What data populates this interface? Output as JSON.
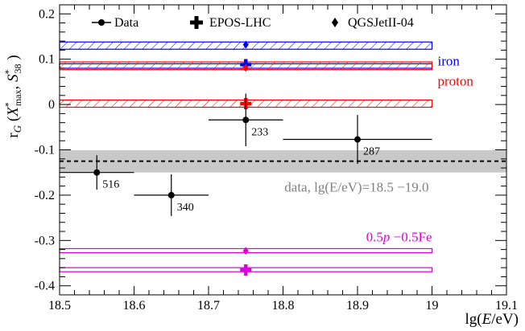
{
  "chart_data": {
    "type": "scatter",
    "xlabel": "lg(E/eV)",
    "ylabel": "r_G (X*max , S*38 )",
    "xlim": [
      18.5,
      19.1
    ],
    "ylim": [
      -0.42,
      0.22
    ],
    "x_ticks": [
      "18.5",
      "18.6",
      "18.7",
      "18.8",
      "18.9",
      "19",
      "19.1"
    ],
    "y_ticks": [
      "-0.4",
      "-0.3",
      "-0.2",
      "-0.1",
      "0",
      "0.1",
      "0.2"
    ],
    "grid": false,
    "legend_position": "top",
    "legend": [
      {
        "label": "Data",
        "marker": "dot-line"
      },
      {
        "label": "EPOS-LHC",
        "marker": "cross"
      },
      {
        "label": "QGSJetII-04",
        "marker": "diamond"
      }
    ],
    "data": {
      "name": "Data",
      "color": "#000000",
      "points": [
        {
          "x": 18.55,
          "x_lo": 18.5,
          "x_hi": 18.6,
          "y": -0.15,
          "y_err": 0.038,
          "label": "516"
        },
        {
          "x": 18.65,
          "x_lo": 18.6,
          "x_hi": 18.7,
          "y": -0.2,
          "y_err": 0.046,
          "label": "340"
        },
        {
          "x": 18.75,
          "x_lo": 18.7,
          "x_hi": 18.8,
          "y": -0.034,
          "y_err": 0.058,
          "label": "233"
        },
        {
          "x": 18.9,
          "x_lo": 18.8,
          "x_hi": 19.0,
          "y": -0.077,
          "y_err": 0.054,
          "label": "287"
        }
      ]
    },
    "combined_band": {
      "label": "data, lg(E/eV)=18.5 −19.0",
      "center": -0.125,
      "low": -0.15,
      "high": -0.101,
      "color": "#c8c8c8"
    },
    "bands": [
      {
        "composition": "iron",
        "model": "QGSJetII-04",
        "low": 0.122,
        "high": 0.138,
        "center": 0.132,
        "color": "#0000ff",
        "hatched": true,
        "label": "iron"
      },
      {
        "composition": "iron",
        "model": "EPOS-LHC",
        "low": 0.08,
        "high": 0.09,
        "center": 0.088,
        "color": "#0000ff",
        "hatched": false,
        "label": ""
      },
      {
        "composition": "proton",
        "model": "QGSJetII-04",
        "low": 0.077,
        "high": 0.094,
        "center": 0.081,
        "color": "#ff0000",
        "hatched": true,
        "label": "proton"
      },
      {
        "composition": "proton",
        "model": "EPOS-LHC",
        "low": -0.006,
        "high": 0.01,
        "center": 0.002,
        "color": "#ff0000",
        "hatched": true,
        "label": ""
      },
      {
        "composition": "mixed",
        "model": "QGSJetII-04",
        "low": -0.327,
        "high": -0.318,
        "center": -0.323,
        "color": "#dd00dd",
        "hatched": false,
        "label": "0.5p −0.5Fe"
      },
      {
        "composition": "mixed",
        "model": "EPOS-LHC",
        "low": -0.369,
        "high": -0.36,
        "center": -0.365,
        "color": "#dd00dd",
        "hatched": false,
        "label": ""
      }
    ],
    "model_x": 18.75
  }
}
